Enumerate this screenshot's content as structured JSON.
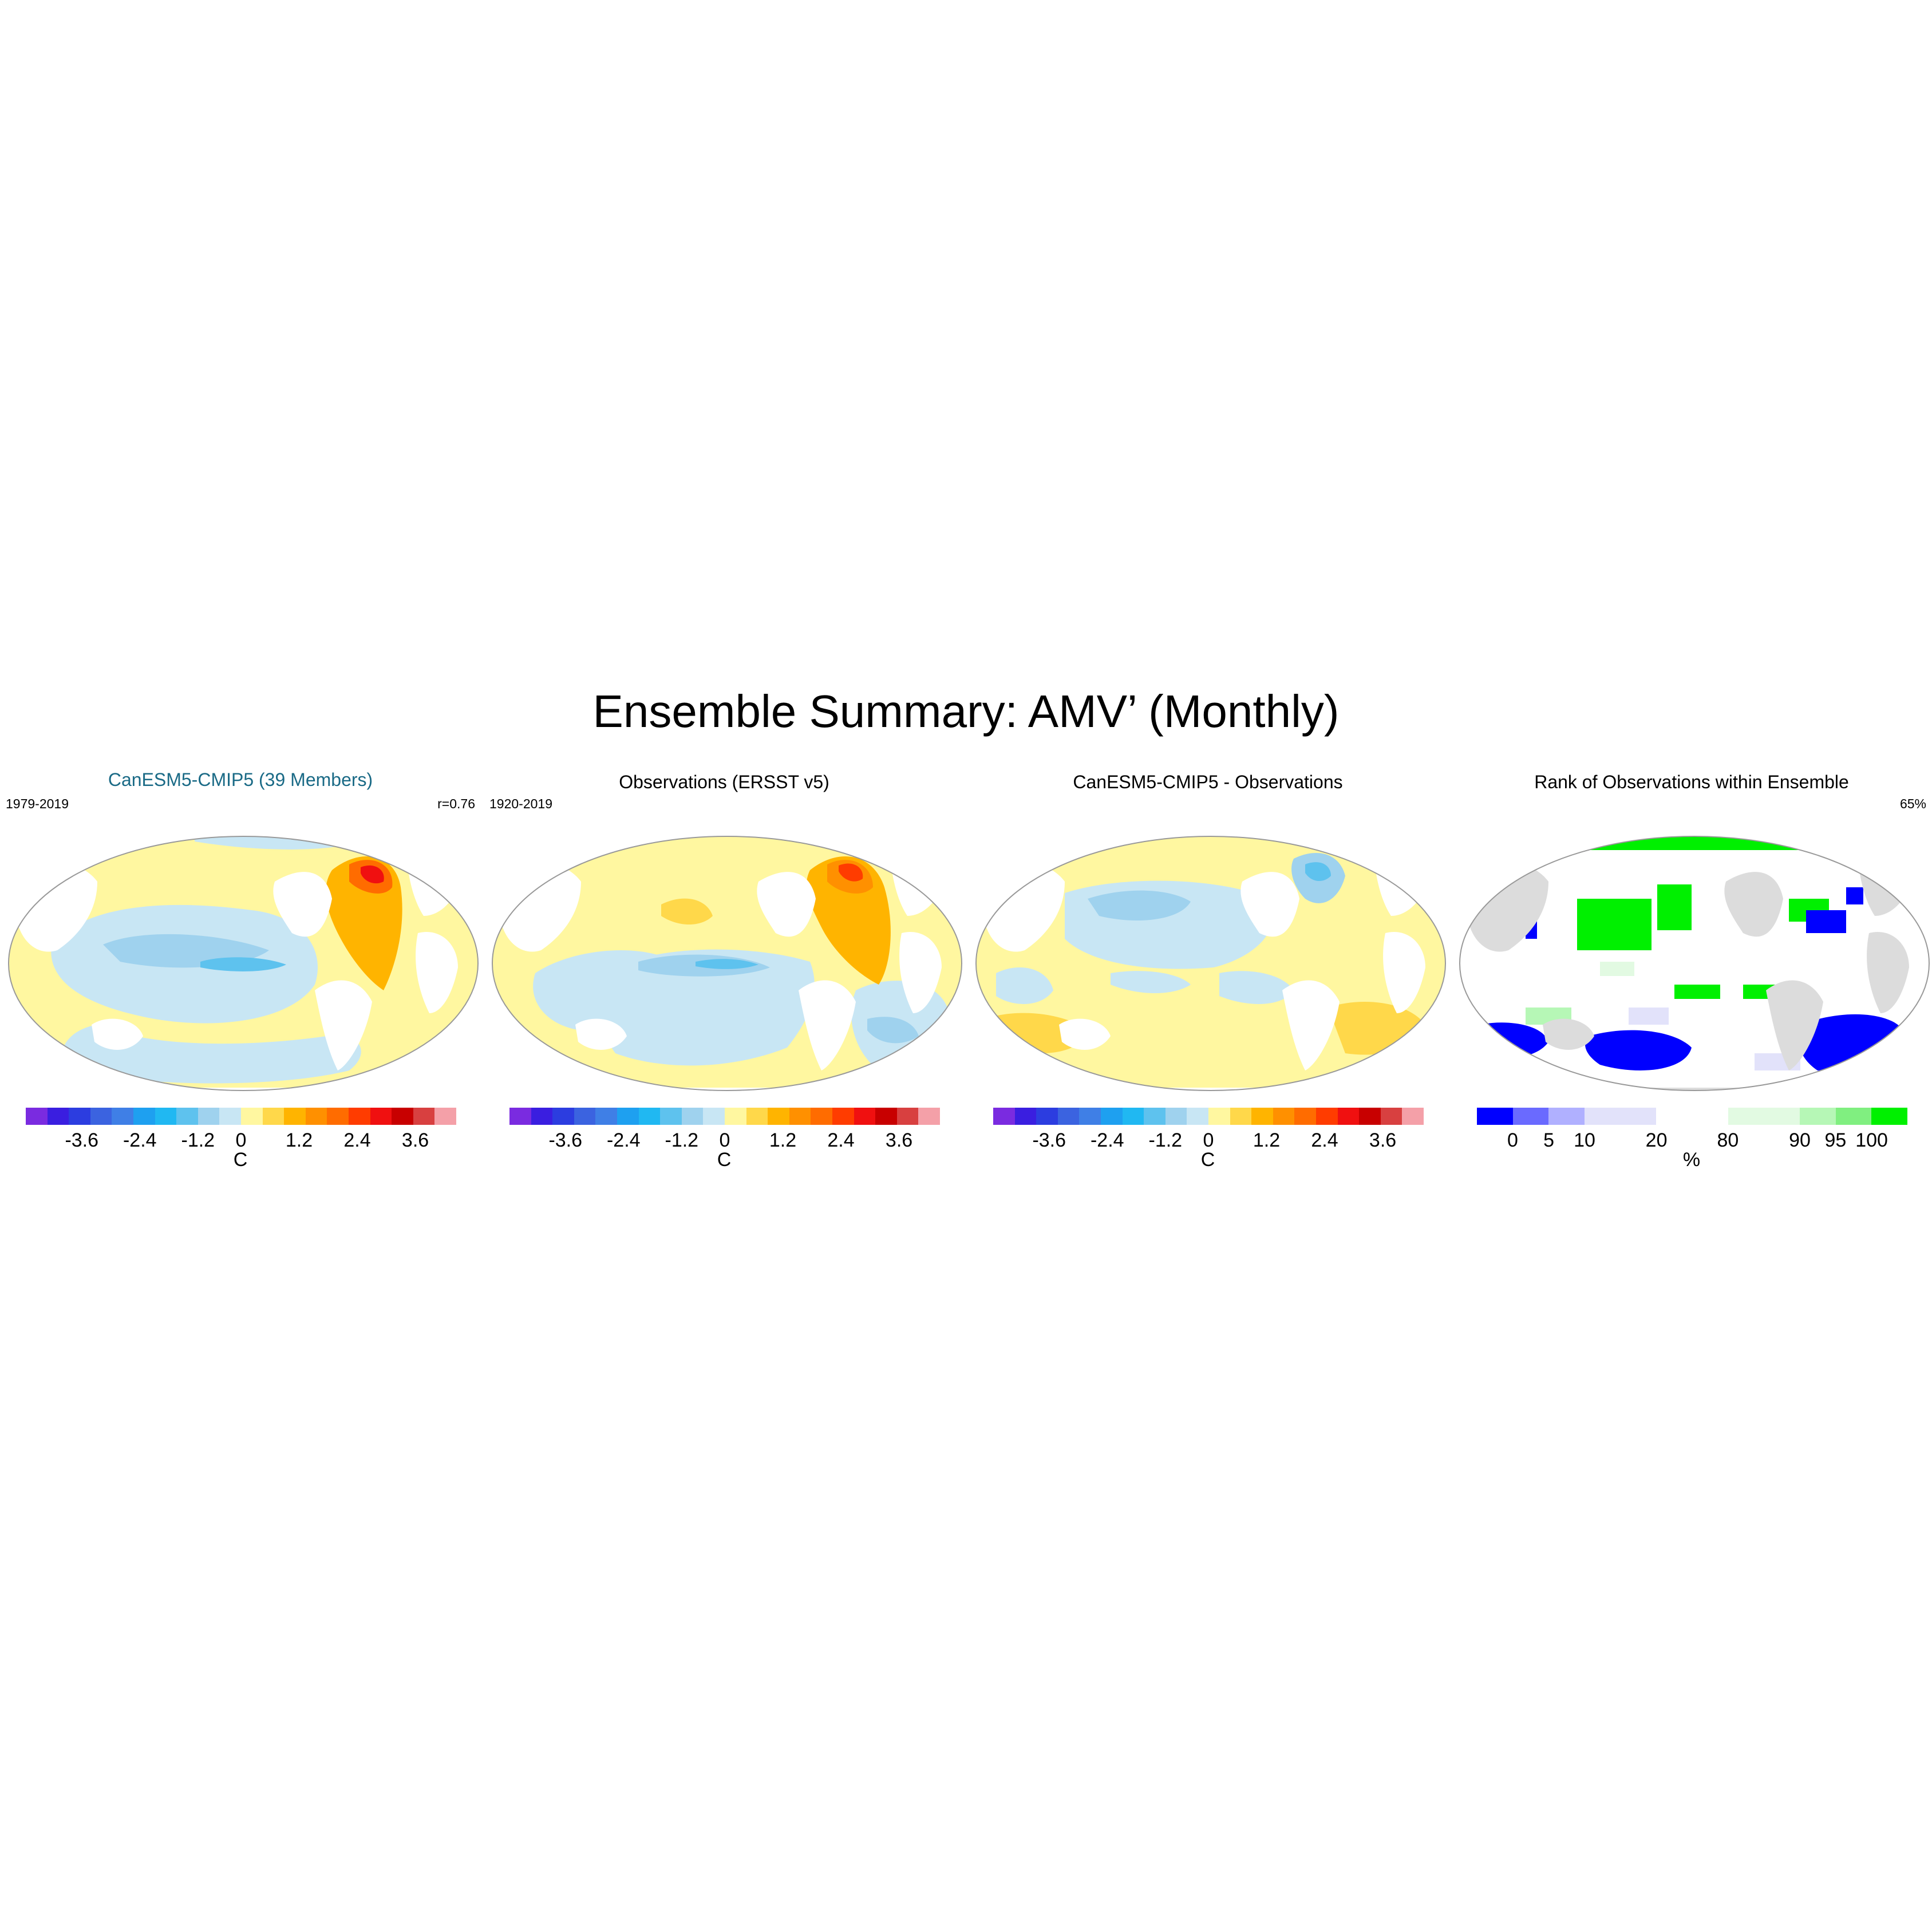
{
  "figure_title": "Ensemble Summary: AMV’ (Monthly)",
  "panels": [
    {
      "title": "CanESM5-CMIP5 (39 Members)",
      "left_label": "1979-2019",
      "right_label": "r=0.76",
      "colorbar": {
        "ticks": [
          "-3.6",
          "-2.4",
          "-1.2",
          "0",
          "1.2",
          "2.4",
          "3.6"
        ],
        "unit": "C"
      }
    },
    {
      "title": "Observations (ERSST v5)",
      "left_label": "1920-2019",
      "right_label": "",
      "colorbar": {
        "ticks": [
          "-3.6",
          "-2.4",
          "-1.2",
          "0",
          "1.2",
          "2.4",
          "3.6"
        ],
        "unit": "C"
      }
    },
    {
      "title": "CanESM5-CMIP5 - Observations",
      "left_label": "",
      "right_label": "",
      "colorbar": {
        "ticks": [
          "-3.6",
          "-2.4",
          "-1.2",
          "0",
          "1.2",
          "2.4",
          "3.6"
        ],
        "unit": "C"
      }
    },
    {
      "title": "Rank of Observations within Ensemble",
      "left_label": "",
      "right_label": "65%",
      "colorbar": {
        "ticks": [
          "0",
          "5",
          "10",
          "20",
          "80",
          "90",
          "95",
          "100"
        ],
        "unit": "%"
      }
    }
  ],
  "colors": {
    "anomaly_scale": [
      "#7a2be0",
      "#3a1ee0",
      "#2c3de0",
      "#3b63e0",
      "#3f7fe6",
      "#1ea0f0",
      "#20b8f2",
      "#5ec2ee",
      "#9fd2ee",
      "#c8e6f4",
      "#fff7a0",
      "#ffd84a",
      "#ffb400",
      "#ff9000",
      "#ff6c00",
      "#ff3c00",
      "#f01010",
      "#c80000",
      "#d84040",
      "#f4a0a8"
    ],
    "rank_scale": [
      "#0000ff",
      "#6a6aff",
      "#b0b0ff",
      "#e2e2fa",
      "#ffffff",
      "#ffffff",
      "#e2fae2",
      "#b6f7b6",
      "#80ef80",
      "#00f000"
    ],
    "land": "#ffffff",
    "land_rank_panel": "#dcdcdc",
    "coastline": "#333333"
  }
}
